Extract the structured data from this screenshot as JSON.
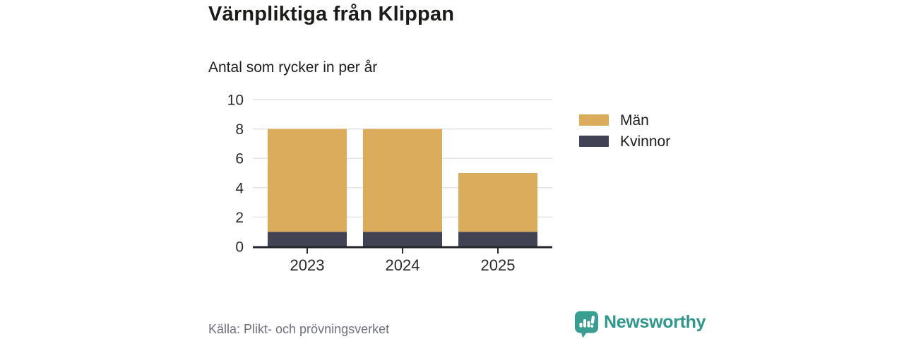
{
  "header": {
    "title": "Värnpliktiga från Klippan",
    "subtitle": "Antal som rycker in per år"
  },
  "chart_data": {
    "type": "bar",
    "stacked": true,
    "title": "Värnpliktiga från Klippan",
    "subtitle": "Antal som rycker in per år",
    "categories": [
      "2023",
      "2024",
      "2025"
    ],
    "series": [
      {
        "name": "Kvinnor",
        "values": [
          1,
          1,
          1
        ],
        "color": "#414253"
      },
      {
        "name": "Män",
        "values": [
          7,
          7,
          4
        ],
        "color": "#dbac5c"
      }
    ],
    "totals": [
      8,
      8,
      5
    ],
    "xlabel": "",
    "ylabel": "",
    "ylim": [
      0,
      10
    ],
    "yticks": [
      0,
      2,
      4,
      6,
      8,
      10
    ],
    "grid": true,
    "legend_position": "right",
    "legend_items": [
      {
        "label": "Män",
        "color": "#dbac5c"
      },
      {
        "label": "Kvinnor",
        "color": "#414253"
      }
    ],
    "colors": {
      "grid": "#e4e4e6",
      "axis": "#26262e",
      "tick_label": "#2b2b2b"
    }
  },
  "footer": {
    "source": "Källa: Plikt- och prövningsverket",
    "brand": "Newsworthy",
    "brand_color": "#2f978c",
    "brand_icon_color": "#3a9d91"
  }
}
